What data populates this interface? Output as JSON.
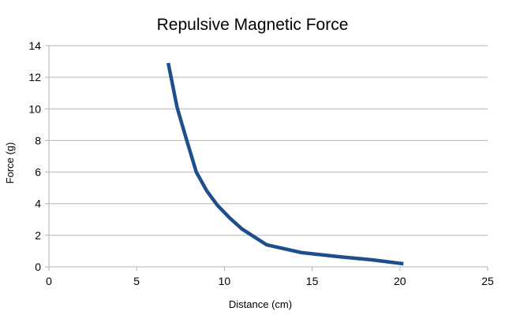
{
  "chart_data": {
    "type": "line",
    "title": "Repulsive Magnetic Force",
    "xlabel": "Distance  (cm)",
    "ylabel": "Force (g)",
    "xlim": [
      0,
      25
    ],
    "ylim": [
      0,
      14
    ],
    "x_ticks": [
      0,
      5,
      10,
      15,
      20,
      25
    ],
    "y_ticks": [
      0,
      2,
      4,
      6,
      8,
      10,
      12,
      14
    ],
    "grid": "horizontal",
    "legend": "none",
    "series": [
      {
        "color": "#1f4e8c",
        "x": [
          6.8,
          7.3,
          7.8,
          8.4,
          9.0,
          9.6,
          10.3,
          11.0,
          12.4,
          14.4,
          16.5,
          18.4,
          20.2
        ],
        "y": [
          12.9,
          10.1,
          8.2,
          6.0,
          4.8,
          3.9,
          3.1,
          2.4,
          1.4,
          0.9,
          0.65,
          0.45,
          0.2
        ]
      }
    ]
  }
}
